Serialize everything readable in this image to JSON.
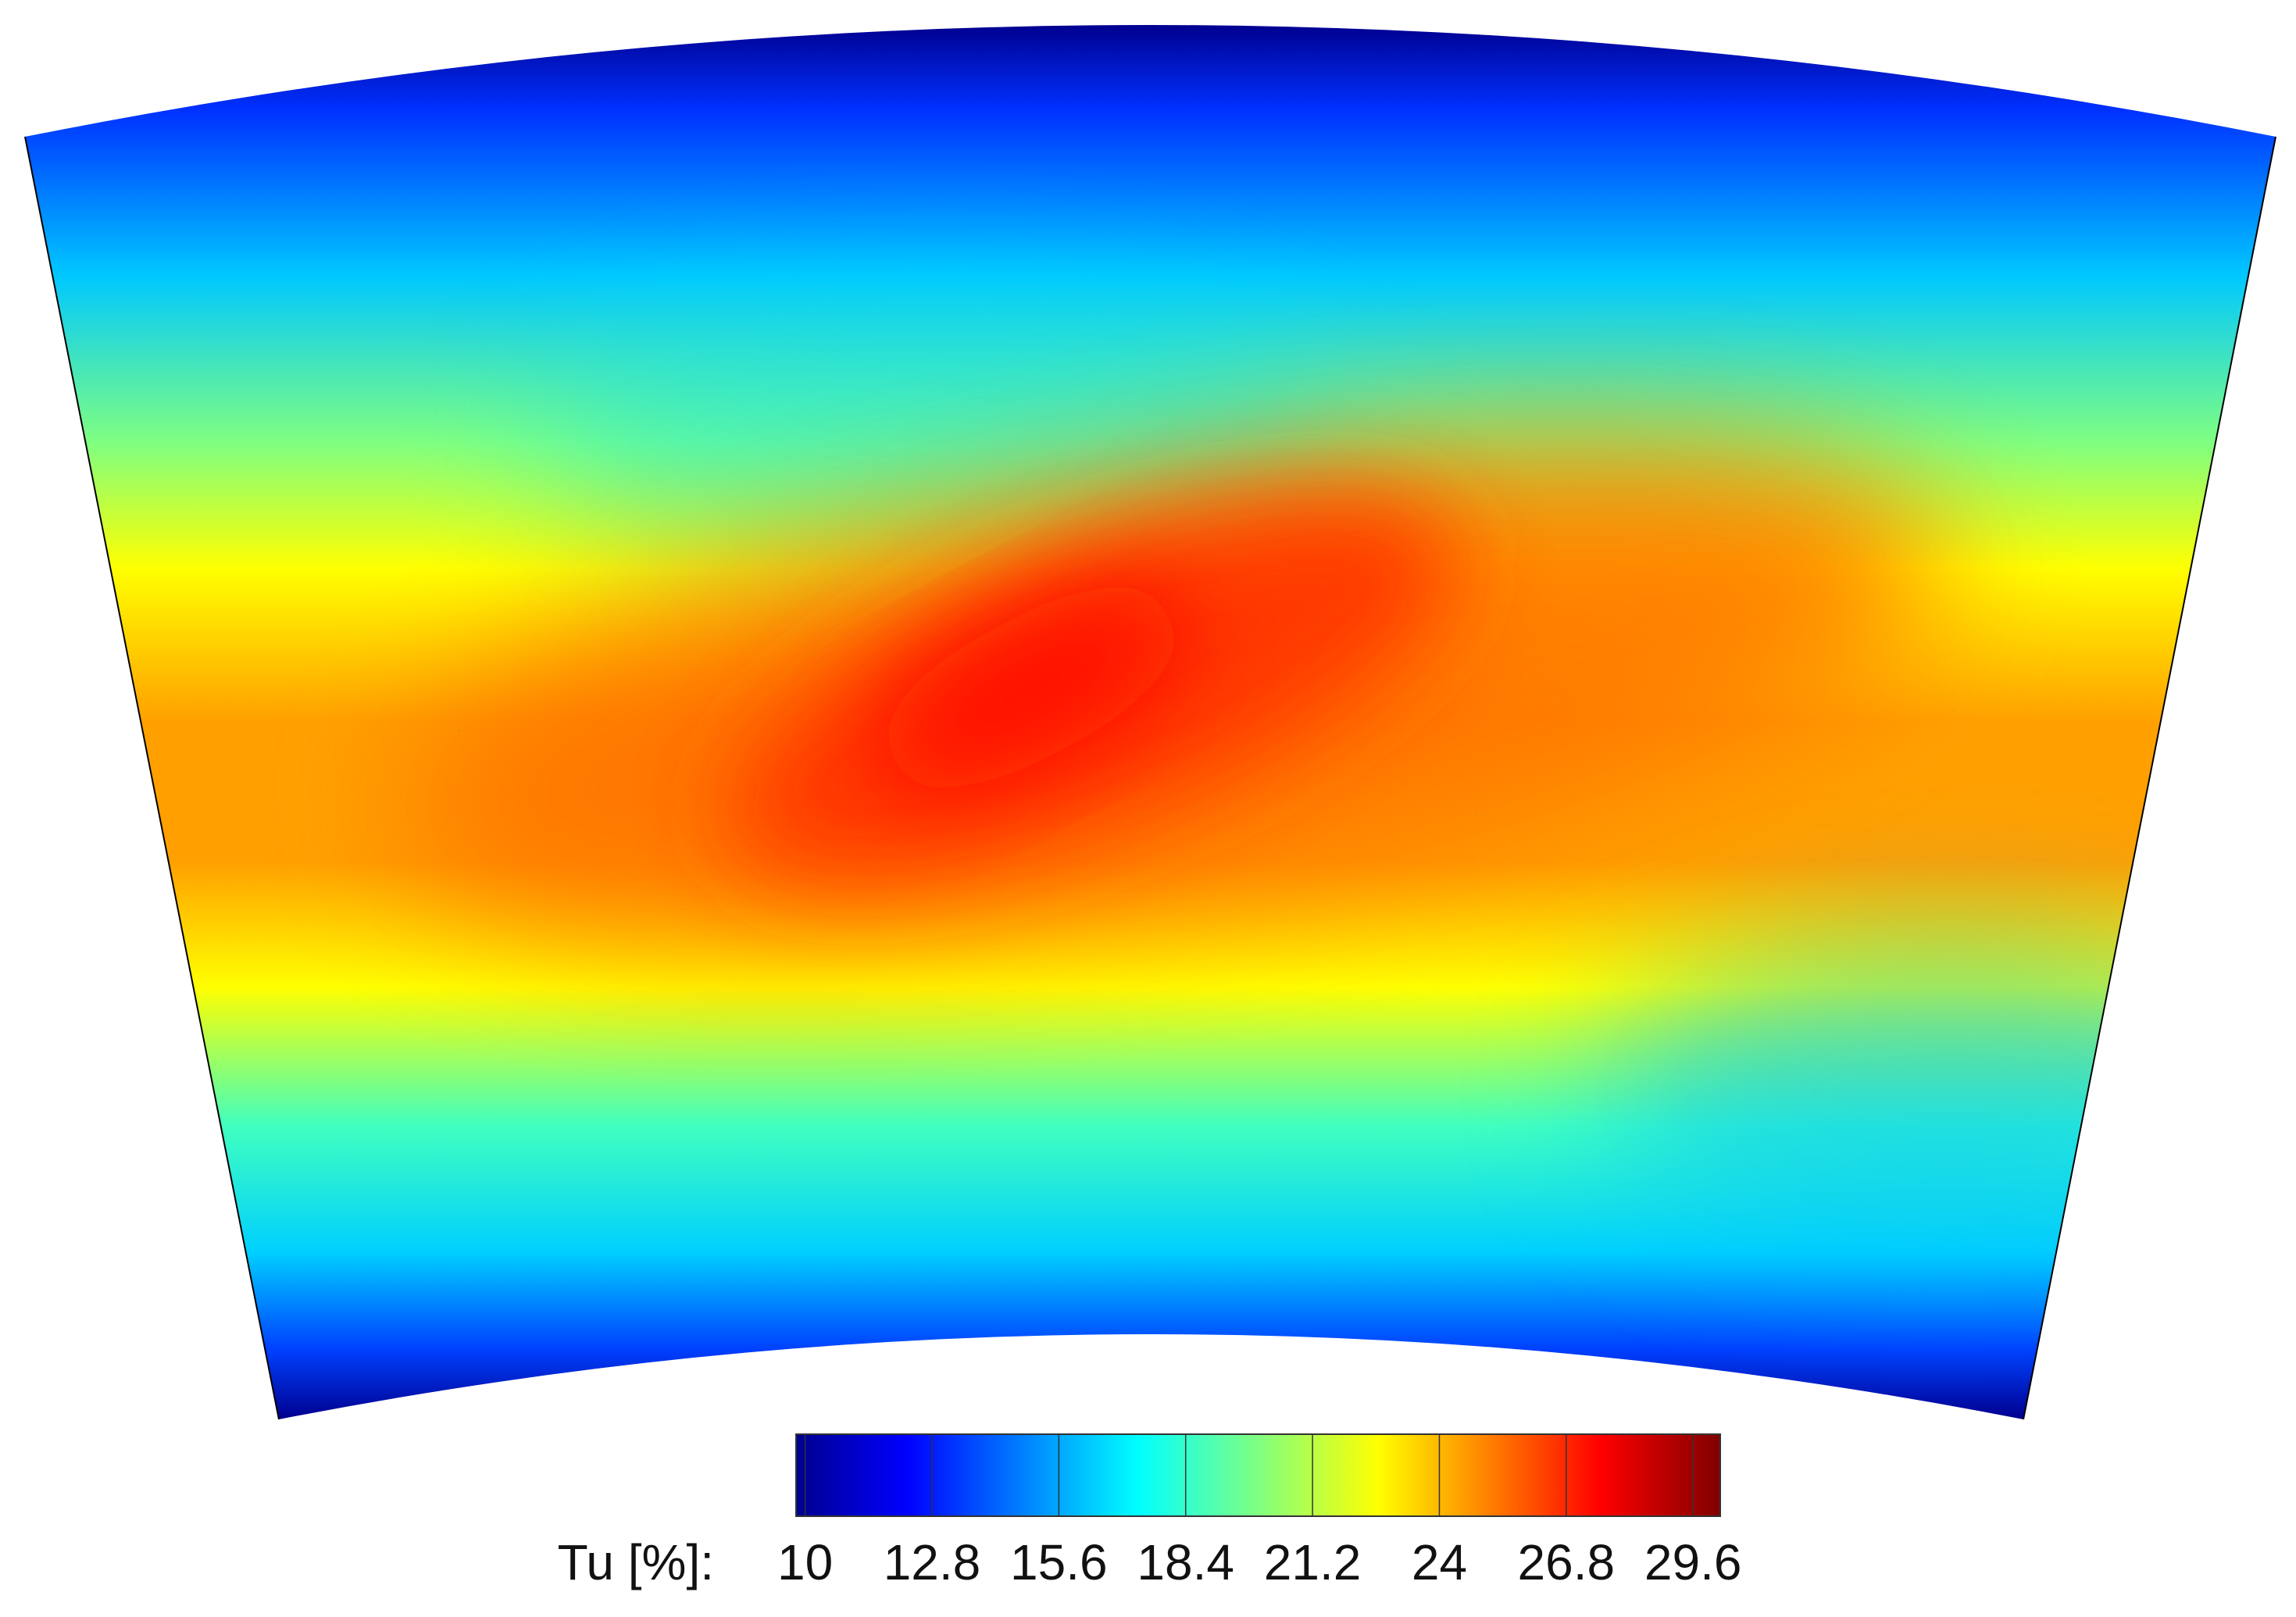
{
  "chart_data": {
    "type": "contour",
    "colorbar": {
      "label": "Tu [%]:",
      "colormap": "jet",
      "clim": [
        9.8,
        30.2
      ],
      "ticks": [
        10,
        12.8,
        15.6,
        18.4,
        21.2,
        24,
        26.8,
        29.6
      ]
    }
  }
}
